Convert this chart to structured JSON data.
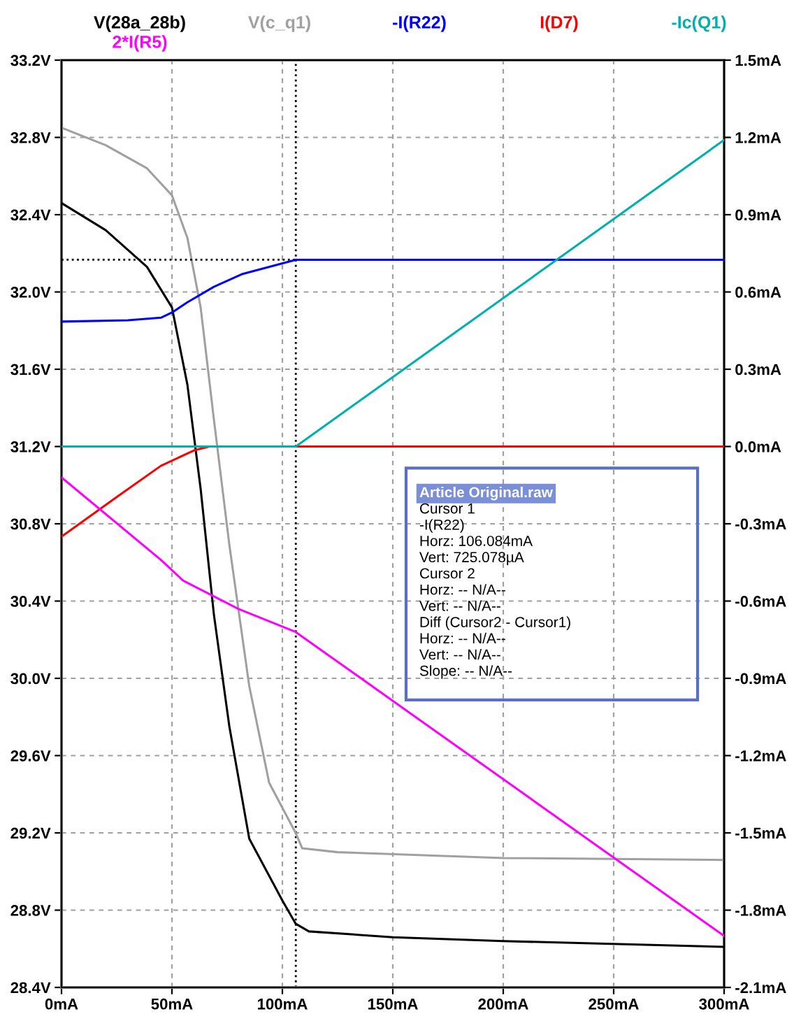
{
  "chart_data": {
    "type": "line",
    "xlim": [
      0,
      300
    ],
    "xticks": [
      {
        "value": 0,
        "label": "0mA"
      },
      {
        "value": 50,
        "label": "50mA"
      },
      {
        "value": 100,
        "label": "100mA"
      },
      {
        "value": 150,
        "label": "150mA"
      },
      {
        "value": 200,
        "label": "200mA"
      },
      {
        "value": 250,
        "label": "250mA"
      },
      {
        "value": 300,
        "label": "300mA"
      }
    ],
    "ylim": [
      28.4,
      33.2
    ],
    "yticks": [
      {
        "value": 28.4,
        "label": "28.4V"
      },
      {
        "value": 28.8,
        "label": "28.8V"
      },
      {
        "value": 29.2,
        "label": "29.2V"
      },
      {
        "value": 29.6,
        "label": "29.6V"
      },
      {
        "value": 30.0,
        "label": "30.0V"
      },
      {
        "value": 30.4,
        "label": "30.4V"
      },
      {
        "value": 30.8,
        "label": "30.8V"
      },
      {
        "value": 31.2,
        "label": "31.2V"
      },
      {
        "value": 31.6,
        "label": "31.6V"
      },
      {
        "value": 32.0,
        "label": "32.0V"
      },
      {
        "value": 32.4,
        "label": "32.4V"
      },
      {
        "value": 32.8,
        "label": "32.8V"
      },
      {
        "value": 33.2,
        "label": "33.2V"
      }
    ],
    "y2lim": [
      -2.1,
      1.5
    ],
    "y2ticks": [
      {
        "value": -2.1,
        "label": "-2.1mA"
      },
      {
        "value": -1.8,
        "label": "-1.8mA"
      },
      {
        "value": -1.5,
        "label": "-1.5mA"
      },
      {
        "value": -1.2,
        "label": "-1.2mA"
      },
      {
        "value": -0.9,
        "label": "-0.9mA"
      },
      {
        "value": -0.6,
        "label": "-0.6mA"
      },
      {
        "value": -0.3,
        "label": "-0.3mA"
      },
      {
        "value": 0.0,
        "label": "0.0mA"
      },
      {
        "value": 0.3,
        "label": "0.3mA"
      },
      {
        "value": 0.6,
        "label": "0.6mA"
      },
      {
        "value": 0.9,
        "label": "0.9mA"
      },
      {
        "value": 1.2,
        "label": "1.2mA"
      },
      {
        "value": 1.5,
        "label": "1.5mA"
      }
    ],
    "grid": true,
    "legend": "top",
    "marker": "none",
    "line_style": "solid",
    "series": [
      {
        "name": "V(28a_28b)",
        "color": "#000000",
        "x": [
          0,
          20,
          38.7,
          50,
          57,
          63,
          69,
          76,
          85,
          100,
          106,
          112,
          150,
          200,
          300
        ],
        "values": [
          32.46,
          32.32,
          32.13,
          31.92,
          31.52,
          30.98,
          30.33,
          29.75,
          29.17,
          28.85,
          28.73,
          28.69,
          28.66,
          28.64,
          28.61
        ]
      },
      {
        "name": "V(c_q1)",
        "color": "#a0a0a0",
        "x": [
          0,
          20,
          38.7,
          50,
          57,
          63,
          69,
          76,
          85,
          94,
          106,
          109,
          125,
          200,
          300
        ],
        "values": [
          32.85,
          32.76,
          32.64,
          32.5,
          32.28,
          31.92,
          31.34,
          30.69,
          29.96,
          29.46,
          29.2,
          29.12,
          29.1,
          29.07,
          29.06
        ]
      },
      {
        "name": "-I(R22)",
        "color": "#0000ff",
        "axis": "y2",
        "x": [
          0,
          30,
          45,
          50,
          57,
          69,
          82,
          106.1,
          150,
          300
        ],
        "values": [
          0.485,
          0.49,
          0.5,
          0.52,
          0.56,
          0.62,
          0.67,
          0.725,
          0.725,
          0.725
        ]
      },
      {
        "name": "I(D7)",
        "color": "#ff0000",
        "axis": "y2",
        "x": [
          0,
          26,
          45,
          60,
          67,
          100,
          300
        ],
        "values": [
          -0.35,
          -0.19,
          -0.075,
          -0.015,
          0.0,
          0.0,
          0.0
        ]
      },
      {
        "name": "-Ic(Q1)",
        "color": "#00b0b0",
        "axis": "y2",
        "x": [
          0,
          106.1,
          300
        ],
        "values": [
          0.0,
          0.0,
          1.19
        ]
      },
      {
        "name": "2*I(R5)",
        "color": "#ff00ff",
        "axis": "y2",
        "x": [
          0,
          45,
          55,
          80,
          106,
          300
        ],
        "values": [
          -0.12,
          -0.44,
          -0.52,
          -0.63,
          -0.72,
          -1.9
        ]
      }
    ],
    "ref_lines": [
      {
        "axis": "x",
        "value": 106.084,
        "color": "#000000",
        "line_style": "dotted"
      },
      {
        "axis": "y2",
        "value": 0.725078,
        "color": "#000000",
        "line_style": "dotted"
      }
    ],
    "annotations": [
      "Article Original.raw",
      "Cursor 1",
      "-I(R22)",
      "Horz: 106.084mA",
      "Vert: 725.078µA",
      "Cursor 2",
      "Horz: -- N/A--",
      "Vert: -- N/A--",
      "Diff (Cursor2 - Cursor1)",
      "Horz: -- N/A--",
      "Vert: -- N/A--",
      "Slope: -- N/A--"
    ]
  }
}
